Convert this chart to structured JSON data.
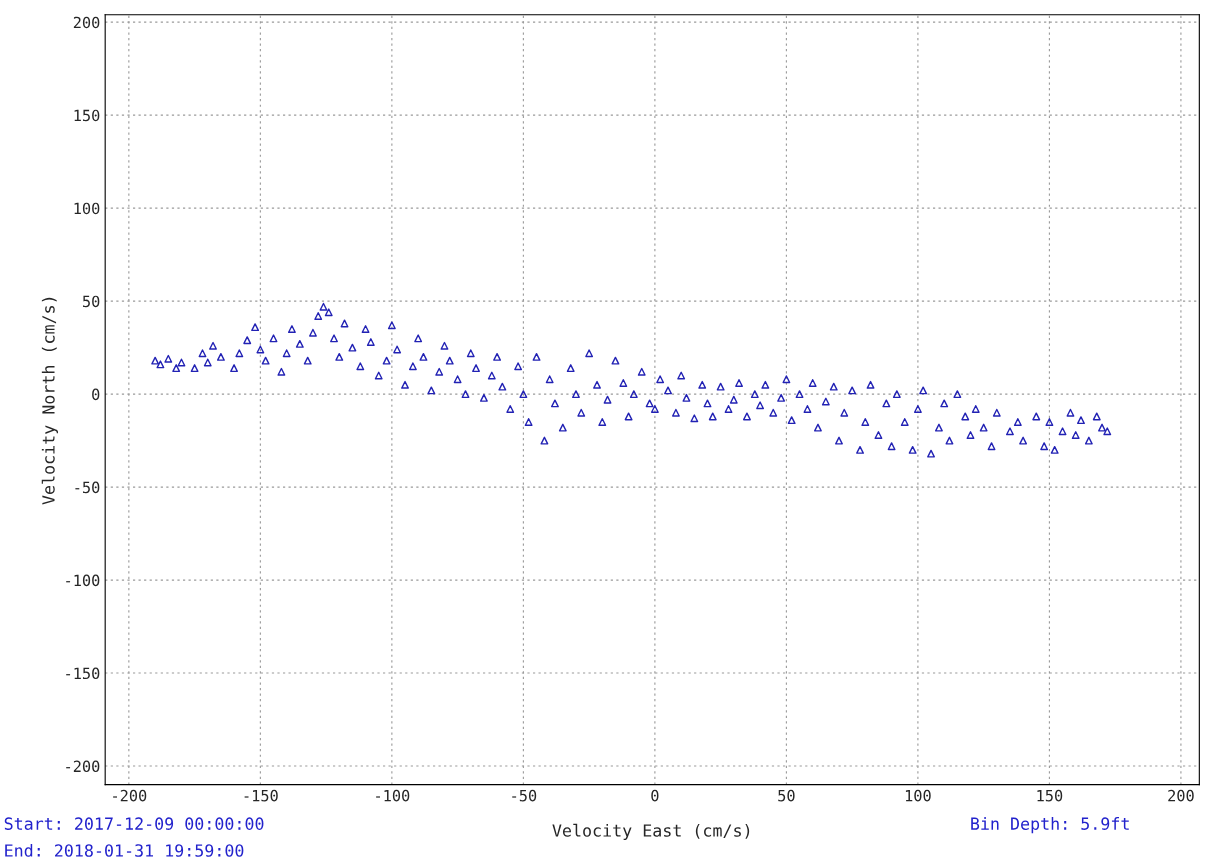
{
  "chart_data": {
    "type": "scatter",
    "xlabel": "Velocity East (cm/s)",
    "ylabel": "Velocity North (cm/s)",
    "annotations": [
      "Start: 2017-12-09 00:00:00",
      "End: 2018-01-31 19:59:00",
      "Bin Depth: 5.9ft"
    ],
    "xlim": [
      -209,
      207
    ],
    "ylim": [
      -210,
      204
    ],
    "xticks": [
      -200,
      -150,
      -100,
      -50,
      0,
      50,
      100,
      150,
      200
    ],
    "yticks": [
      -200,
      -150,
      -100,
      -50,
      0,
      50,
      100,
      150,
      200
    ],
    "grid": true,
    "marker": "triangle",
    "series": [
      {
        "color": "#2222b4",
        "x": [
          -190,
          -188,
          -185,
          -182,
          -180,
          -175,
          -172,
          -170,
          -168,
          -165,
          -160,
          -158,
          -155,
          -152,
          -150,
          -148,
          -145,
          -142,
          -140,
          -138,
          -135,
          -132,
          -130,
          -128,
          -126,
          -124,
          -122,
          -120,
          -118,
          -115,
          -112,
          -110,
          -108,
          -105,
          -102,
          -100,
          -98,
          -95,
          -92,
          -90,
          -88,
          -85,
          -82,
          -80,
          -78,
          -75,
          -72,
          -70,
          -68,
          -65,
          -62,
          -60,
          -58,
          -55,
          -52,
          -50,
          -48,
          -45,
          -42,
          -40,
          -38,
          -35,
          -32,
          -30,
          -28,
          -25,
          -22,
          -20,
          -18,
          -15,
          -12,
          -10,
          -8,
          -5,
          -2,
          0,
          2,
          5,
          8,
          10,
          12,
          15,
          18,
          20,
          22,
          25,
          28,
          30,
          32,
          35,
          38,
          40,
          42,
          45,
          48,
          50,
          52,
          55,
          58,
          60,
          62,
          65,
          68,
          70,
          72,
          75,
          78,
          80,
          82,
          85,
          88,
          90,
          92,
          95,
          98,
          100,
          102,
          105,
          108,
          110,
          112,
          115,
          118,
          120,
          122,
          125,
          128,
          130,
          135,
          138,
          140,
          145,
          148,
          150,
          152,
          155,
          158,
          160,
          162,
          165,
          168,
          170,
          172
        ],
        "values": [
          18,
          16,
          19,
          14,
          17,
          14,
          22,
          17,
          26,
          20,
          14,
          22,
          29,
          36,
          24,
          18,
          30,
          12,
          22,
          35,
          27,
          18,
          33,
          42,
          47,
          44,
          30,
          20,
          38,
          25,
          15,
          35,
          28,
          10,
          18,
          37,
          24,
          5,
          15,
          30,
          20,
          2,
          12,
          26,
          18,
          8,
          0,
          22,
          14,
          -2,
          10,
          20,
          4,
          -8,
          15,
          0,
          -15,
          20,
          -25,
          8,
          -5,
          -18,
          14,
          0,
          -10,
          22,
          5,
          -15,
          -3,
          18,
          6,
          -12,
          0,
          12,
          -5,
          -8,
          8,
          2,
          -10,
          10,
          -2,
          -13,
          5,
          -5,
          -12,
          4,
          -8,
          -3,
          6,
          -12,
          0,
          -6,
          5,
          -10,
          -2,
          8,
          -14,
          0,
          -8,
          6,
          -18,
          -4,
          4,
          -25,
          -10,
          2,
          -30,
          -15,
          5,
          -22,
          -5,
          -28,
          0,
          -15,
          -30,
          -8,
          2,
          -32,
          -18,
          -5,
          -25,
          0,
          -12,
          -22,
          -8,
          -18,
          -28,
          -10,
          -20,
          -15,
          -25,
          -12,
          -28,
          -15,
          -30,
          -20,
          -10,
          -22,
          -14,
          -25,
          -12,
          -18,
          -20
        ]
      }
    ]
  }
}
